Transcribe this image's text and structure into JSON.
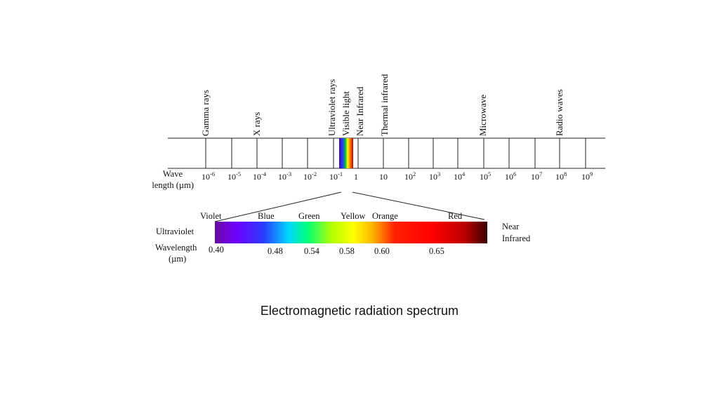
{
  "caption": "Electromagnetic radiation spectrum",
  "wave_axis": {
    "label_line1": "Wave",
    "label_line2": "length (µm)",
    "ticks": [
      {
        "base": "10",
        "exp": "-6"
      },
      {
        "base": "10",
        "exp": "-5"
      },
      {
        "base": "10",
        "exp": "-4"
      },
      {
        "base": "10",
        "exp": "-3"
      },
      {
        "base": "10",
        "exp": "-2"
      },
      {
        "base": "10",
        "exp": "-1"
      },
      {
        "base": "1",
        "exp": ""
      },
      {
        "base": "10",
        "exp": ""
      },
      {
        "base": "10",
        "exp": "2"
      },
      {
        "base": "10",
        "exp": "3"
      },
      {
        "base": "10",
        "exp": "4"
      },
      {
        "base": "10",
        "exp": "5"
      },
      {
        "base": "10",
        "exp": "6"
      },
      {
        "base": "10",
        "exp": "7"
      },
      {
        "base": "10",
        "exp": "8"
      },
      {
        "base": "10",
        "exp": "9"
      }
    ]
  },
  "bands": [
    "Gamma rays",
    "X rays",
    "Ultraviolet rays",
    "Visible light",
    "Near Infrared",
    "Thermal infrared",
    "Microwave",
    "Radio waves"
  ],
  "visible": {
    "colors": [
      "Violet",
      "Blue",
      "Green",
      "Yellow",
      "Orange",
      "Red"
    ],
    "left_label": "Ultraviolet",
    "right_label_line1": "Near",
    "right_label_line2": "Infrared",
    "wavelength_label_line1": "Wavelength",
    "wavelength_label_line2": "(µm)",
    "wavelengths": [
      "0.40",
      "0.48",
      "0.54",
      "0.58",
      "0.60",
      "0.65"
    ]
  }
}
